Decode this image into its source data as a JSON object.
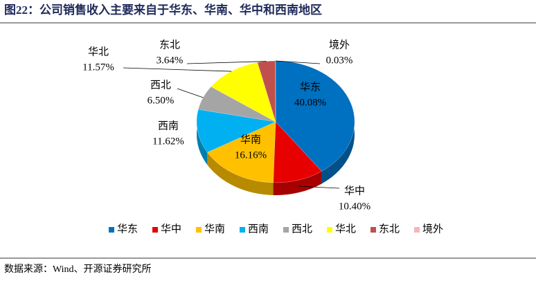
{
  "chart_data": {
    "type": "pie",
    "title": "图22：公司销售收入主要来自于华东、华南、华中和西南地区",
    "categories": [
      "华东",
      "华中",
      "华南",
      "西南",
      "西北",
      "华北",
      "东北",
      "境外"
    ],
    "values": [
      40.08,
      10.4,
      16.16,
      11.62,
      6.5,
      11.57,
      3.64,
      0.03
    ],
    "value_labels": [
      "40.08%",
      "10.40%",
      "16.16%",
      "11.62%",
      "6.50%",
      "11.57%",
      "3.64%",
      "0.03%"
    ],
    "colors": [
      "#0070c0",
      "#e60000",
      "#ffc000",
      "#00b0f0",
      "#a5a5a5",
      "#ffff00",
      "#c0504d",
      "#f2b8b8"
    ],
    "legend": "bottom",
    "source": "数据来源：Wind、开源证券研究所"
  }
}
